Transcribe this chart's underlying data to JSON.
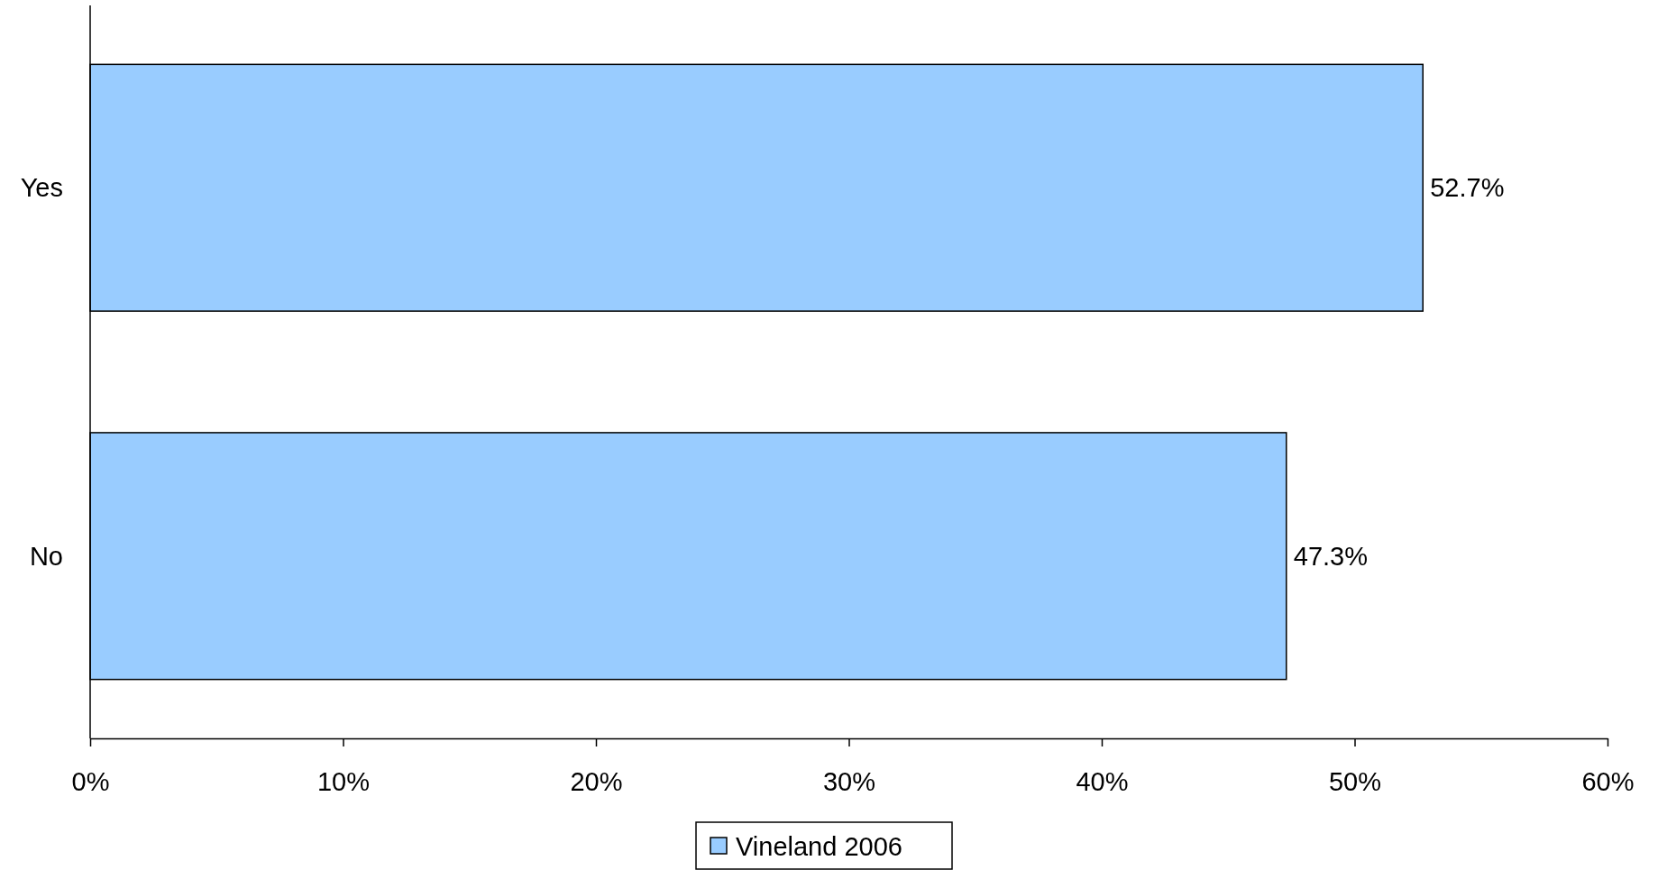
{
  "chart_data": {
    "type": "bar",
    "orientation": "horizontal",
    "categories": [
      "Yes",
      "No"
    ],
    "series": [
      {
        "name": "Vineland 2006",
        "color": "#99ccff",
        "values": [
          52.7,
          47.3
        ],
        "value_labels": [
          "52.7%",
          "47.3%"
        ]
      }
    ],
    "xlim": [
      0,
      60
    ],
    "xticks": [
      {
        "value": 0,
        "label": "0%"
      },
      {
        "value": 10,
        "label": "10%"
      },
      {
        "value": 20,
        "label": "20%"
      },
      {
        "value": 30,
        "label": "30%"
      },
      {
        "value": 40,
        "label": "40%"
      },
      {
        "value": 50,
        "label": "50%"
      },
      {
        "value": 60,
        "label": "60%"
      }
    ],
    "grid": false,
    "legend": "bottom"
  }
}
